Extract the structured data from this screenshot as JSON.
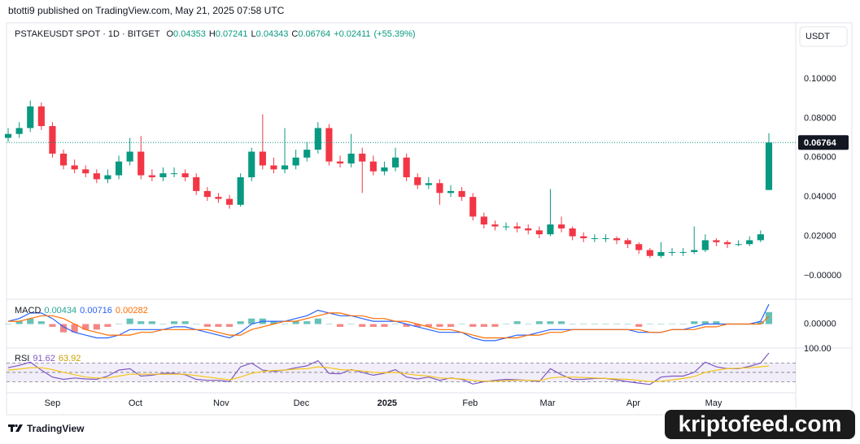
{
  "header": {
    "byline": "btotti9 published on TradingView.com, May 21, 2025 07:58 UTC"
  },
  "chart_data": [
    {
      "type": "candlestick",
      "title": "PSTAKEUSDT SPOT · 1D · BITGET",
      "legend_labels": [
        "O",
        "H",
        "L",
        "C"
      ],
      "change": {
        "value": 0.02411,
        "label": "+0.02411"
      },
      "change_pct": {
        "value": 55.39,
        "label": "(+55.39%)"
      },
      "currency": "USDT",
      "x": [
        0,
        4,
        8,
        12,
        16,
        20,
        24,
        28,
        32,
        36,
        40,
        44,
        48,
        52,
        56,
        60,
        64,
        68,
        72,
        76,
        80,
        84,
        88,
        92,
        96,
        100,
        104,
        108,
        112,
        116,
        120,
        124,
        128,
        132,
        136,
        140,
        144,
        148,
        152,
        156,
        160,
        164,
        168,
        172,
        176,
        180,
        184,
        188,
        192,
        196,
        200,
        204,
        208,
        212,
        216,
        220,
        224,
        228,
        232,
        236,
        240,
        244,
        248,
        252,
        256,
        260,
        264,
        268,
        272,
        275
      ],
      "open": [
        0.07,
        0.072,
        0.075,
        0.086,
        0.076,
        0.062,
        0.056,
        0.054,
        0.052,
        0.049,
        0.051,
        0.058,
        0.063,
        0.051,
        0.05,
        0.052,
        0.052,
        0.05,
        0.043,
        0.04,
        0.039,
        0.036,
        0.05,
        0.063,
        0.056,
        0.054,
        0.056,
        0.06,
        0.064,
        0.075,
        0.058,
        0.057,
        0.062,
        0.058,
        0.053,
        0.055,
        0.06,
        0.05,
        0.046,
        0.047,
        0.042,
        0.043,
        0.04,
        0.03,
        0.026,
        0.025,
        0.025,
        0.024,
        0.023,
        0.021,
        0.026,
        0.024,
        0.02,
        0.019,
        0.019,
        0.019,
        0.018,
        0.016,
        0.013,
        0.01,
        0.012,
        0.012,
        0.012,
        0.013,
        0.018,
        0.017,
        0.016,
        0.016,
        0.018,
        0.04353
      ],
      "high": [
        0.075,
        0.078,
        0.089,
        0.088,
        0.078,
        0.064,
        0.059,
        0.056,
        0.054,
        0.054,
        0.061,
        0.07,
        0.071,
        0.054,
        0.055,
        0.055,
        0.054,
        0.052,
        0.045,
        0.042,
        0.041,
        0.052,
        0.065,
        0.082,
        0.06,
        0.075,
        0.064,
        0.068,
        0.078,
        0.077,
        0.061,
        0.072,
        0.065,
        0.061,
        0.058,
        0.065,
        0.062,
        0.052,
        0.05,
        0.049,
        0.046,
        0.045,
        0.042,
        0.032,
        0.028,
        0.027,
        0.027,
        0.026,
        0.025,
        0.044,
        0.03,
        0.025,
        0.022,
        0.021,
        0.021,
        0.02,
        0.019,
        0.017,
        0.014,
        0.017,
        0.014,
        0.014,
        0.025,
        0.021,
        0.019,
        0.018,
        0.018,
        0.02,
        0.023,
        0.07241
      ],
      "low": [
        0.068,
        0.07,
        0.073,
        0.074,
        0.06,
        0.054,
        0.052,
        0.05,
        0.047,
        0.047,
        0.049,
        0.056,
        0.049,
        0.048,
        0.048,
        0.05,
        0.048,
        0.041,
        0.038,
        0.037,
        0.034,
        0.035,
        0.048,
        0.054,
        0.052,
        0.052,
        0.054,
        0.058,
        0.062,
        0.056,
        0.055,
        0.055,
        0.042,
        0.051,
        0.051,
        0.053,
        0.048,
        0.044,
        0.044,
        0.036,
        0.04,
        0.038,
        0.028,
        0.024,
        0.023,
        0.023,
        0.022,
        0.021,
        0.019,
        0.02,
        0.022,
        0.018,
        0.017,
        0.017,
        0.017,
        0.016,
        0.014,
        0.011,
        0.009,
        0.009,
        0.01,
        0.01,
        0.011,
        0.012,
        0.015,
        0.014,
        0.015,
        0.015,
        0.017,
        0.04343
      ],
      "close": [
        0.072,
        0.075,
        0.086,
        0.076,
        0.062,
        0.056,
        0.054,
        0.052,
        0.049,
        0.051,
        0.058,
        0.063,
        0.051,
        0.05,
        0.052,
        0.052,
        0.05,
        0.043,
        0.04,
        0.039,
        0.036,
        0.05,
        0.063,
        0.056,
        0.054,
        0.056,
        0.06,
        0.064,
        0.075,
        0.058,
        0.057,
        0.062,
        0.058,
        0.053,
        0.055,
        0.06,
        0.05,
        0.046,
        0.047,
        0.042,
        0.043,
        0.04,
        0.03,
        0.026,
        0.025,
        0.025,
        0.024,
        0.023,
        0.021,
        0.026,
        0.024,
        0.02,
        0.019,
        0.019,
        0.019,
        0.018,
        0.016,
        0.013,
        0.01,
        0.012,
        0.012,
        0.012,
        0.013,
        0.018,
        0.017,
        0.016,
        0.016,
        0.018,
        0.021,
        0.06764
      ],
      "up_color": "#089981",
      "down_color": "#f23645",
      "xlim": [
        -0.6,
        284.7
      ],
      "xticks": [
        {
          "value": 16,
          "label": "Sep"
        },
        {
          "value": 46,
          "label": "Oct"
        },
        {
          "value": 77,
          "label": "Nov"
        },
        {
          "value": 106,
          "label": "Dec"
        },
        {
          "value": 137,
          "label": "2025"
        },
        {
          "value": 167,
          "label": "Feb"
        },
        {
          "value": 195,
          "label": "Mar"
        },
        {
          "value": 226,
          "label": "Apr"
        },
        {
          "value": 255,
          "label": "May"
        }
      ],
      "ylim": [
        -0.012,
        0.1285
      ],
      "yticks": [
        {
          "value": 0.1,
          "label": "0.10000"
        },
        {
          "value": 0.08,
          "label": "0.08000"
        },
        {
          "value": 0.06,
          "label": "0.06000"
        },
        {
          "value": 0.04,
          "label": "0.04000"
        },
        {
          "value": 0.02,
          "label": "0.02000"
        },
        {
          "value": 0,
          "label": "−0.00000"
        }
      ]
    },
    {
      "type": "macd",
      "title": "MACD",
      "histogram": {
        "up_color": "#26a69a",
        "down_color": "#ef5350",
        "values": [
          0,
          0.001,
          0.002,
          0.001,
          -0.001,
          -0.003,
          -0.003,
          -0.002,
          -0.002,
          -0.001,
          0,
          0.002,
          0.001,
          0.001,
          0,
          0.001,
          0.001,
          0,
          -0.001,
          -0.001,
          -0.001,
          0.001,
          0.002,
          0.002,
          0.001,
          0,
          0.001,
          0.001,
          0.002,
          0,
          -0.001,
          0,
          -0.001,
          -0.001,
          -0.001,
          0,
          -0.001,
          -0.001,
          -0.001,
          -0.001,
          -0.001,
          0,
          -0.001,
          -0.001,
          -0.001,
          0,
          0.001,
          0,
          0.001,
          0.001,
          0.001,
          0,
          0,
          0,
          0,
          0,
          0,
          -0.001,
          0,
          0,
          0,
          0,
          0.001,
          0.001,
          0.001,
          0,
          0,
          0,
          0.001,
          0.00434
        ]
      },
      "series": [
        {
          "color": "#2962ff",
          "values": [
            0.001,
            0.002,
            0.004,
            0.004,
            0.002,
            -0.001,
            -0.003,
            -0.004,
            -0.005,
            -0.005,
            -0.004,
            -0.002,
            -0.002,
            -0.002,
            -0.002,
            -0.001,
            -0.001,
            -0.002,
            -0.003,
            -0.004,
            -0.005,
            -0.003,
            0,
            0.001,
            0.001,
            0.001,
            0.002,
            0.003,
            0.005,
            0.004,
            0.003,
            0.003,
            0.002,
            0.001,
            0.001,
            0.001,
            0,
            -0.001,
            -0.002,
            -0.003,
            -0.003,
            -0.003,
            -0.005,
            -0.006,
            -0.006,
            -0.005,
            -0.004,
            -0.004,
            -0.003,
            -0.002,
            -0.002,
            -0.002,
            -0.002,
            -0.002,
            -0.002,
            -0.002,
            -0.002,
            -0.003,
            -0.003,
            -0.003,
            -0.002,
            -0.002,
            -0.001,
            0,
            0,
            0,
            0,
            0,
            0.001,
            0.00716
          ]
        },
        {
          "color": "#ff6d00",
          "values": [
            0.001,
            0.001,
            0.002,
            0.003,
            0.003,
            0.002,
            0,
            -0.002,
            -0.003,
            -0.004,
            -0.004,
            -0.004,
            -0.003,
            -0.003,
            -0.002,
            -0.002,
            -0.002,
            -0.002,
            -0.002,
            -0.003,
            -0.004,
            -0.004,
            -0.002,
            -0.001,
            0,
            0.001,
            0.001,
            0.002,
            0.003,
            0.004,
            0.004,
            0.003,
            0.003,
            0.002,
            0.002,
            0.001,
            0.001,
            0,
            -0.001,
            -0.002,
            -0.002,
            -0.003,
            -0.004,
            -0.005,
            -0.005,
            -0.005,
            -0.005,
            -0.004,
            -0.004,
            -0.003,
            -0.003,
            -0.002,
            -0.002,
            -0.002,
            -0.002,
            -0.002,
            -0.002,
            -0.002,
            -0.003,
            -0.003,
            -0.002,
            -0.002,
            -0.002,
            -0.001,
            -0.001,
            0,
            0,
            0,
            0,
            0.00282
          ]
        }
      ],
      "ylim": [
        -0.0084,
        0.0087
      ],
      "yticks": [
        {
          "value": 0,
          "label": "0.00000"
        }
      ]
    },
    {
      "type": "rsi",
      "title": "RSI",
      "levels": [
        70,
        50,
        30
      ],
      "band_color": "#7e57c2",
      "series": [
        {
          "color": "#7e57c2",
          "values": [
            60,
            65,
            72,
            55,
            40,
            35,
            38,
            36,
            35,
            42,
            55,
            58,
            42,
            44,
            48,
            48,
            45,
            35,
            33,
            33,
            30,
            62,
            70,
            55,
            52,
            55,
            60,
            64,
            75,
            48,
            47,
            56,
            50,
            44,
            48,
            56,
            40,
            36,
            40,
            33,
            38,
            35,
            25,
            30,
            33,
            35,
            34,
            33,
            30,
            58,
            45,
            35,
            35,
            37,
            37,
            34,
            30,
            27,
            24,
            40,
            42,
            42,
            50,
            72,
            62,
            58,
            58,
            63,
            70,
            91.62
          ]
        },
        {
          "color": "#f5c518",
          "values": [
            55,
            57,
            60,
            60,
            56,
            50,
            45,
            40,
            38,
            38,
            42,
            46,
            46,
            46,
            46,
            46,
            46,
            43,
            40,
            37,
            34,
            40,
            48,
            52,
            54,
            55,
            57,
            58,
            62,
            60,
            56,
            55,
            53,
            50,
            49,
            50,
            47,
            44,
            42,
            38,
            37,
            36,
            33,
            31,
            31,
            32,
            33,
            33,
            32,
            38,
            40,
            40,
            39,
            38,
            37,
            36,
            35,
            33,
            30,
            31,
            34,
            37,
            41,
            50,
            55,
            58,
            59,
            60,
            62,
            63.92
          ]
        }
      ],
      "ylim": [
        8,
        100.5
      ],
      "yticks": [
        {
          "value": 100,
          "label": "100.00"
        }
      ]
    }
  ],
  "footer": {
    "brand": "TradingView",
    "watermark": "kriptofeed.com"
  }
}
